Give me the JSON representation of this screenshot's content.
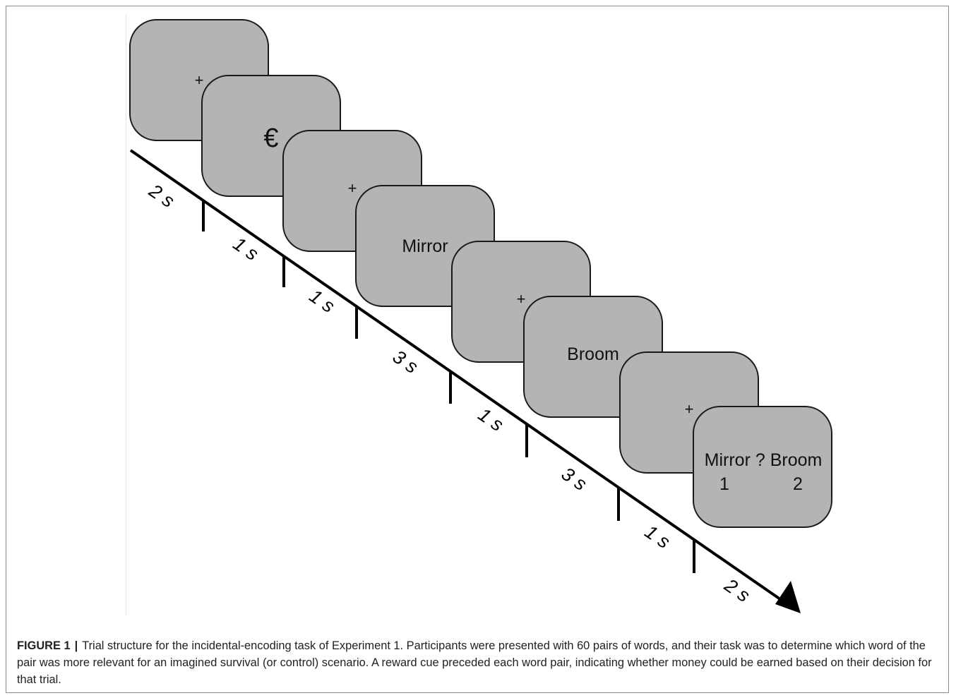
{
  "figure": {
    "screens": [
      {
        "content_type": "fixation",
        "text": "+"
      },
      {
        "content_type": "reward-cue",
        "text": "€"
      },
      {
        "content_type": "fixation",
        "text": "+"
      },
      {
        "content_type": "word",
        "text": "Mirror"
      },
      {
        "content_type": "fixation",
        "text": "+"
      },
      {
        "content_type": "word",
        "text": "Broom"
      },
      {
        "content_type": "fixation",
        "text": "+"
      },
      {
        "content_type": "choice",
        "line1": "Mirror ? Broom",
        "option1": "1",
        "option2": "2"
      }
    ],
    "durations": [
      "2 s",
      "1 s",
      "1 s",
      "3 s",
      "1 s",
      "3 s",
      "1 s",
      "2 s"
    ],
    "colors": {
      "screen_fill": "#b4b4b4",
      "screen_border": "#1a1a1a",
      "axis": "#000000"
    }
  },
  "caption": {
    "label": "FIGURE 1",
    "separator": "|",
    "text": "Trial structure for the incidental-encoding task of Experiment 1. Participants were presented with 60 pairs of words, and their task was to determine which word of the pair was more relevant for an imagined survival (or control) scenario. A reward cue preceded each word pair, indicating whether money could be earned based on their decision for that trial."
  }
}
